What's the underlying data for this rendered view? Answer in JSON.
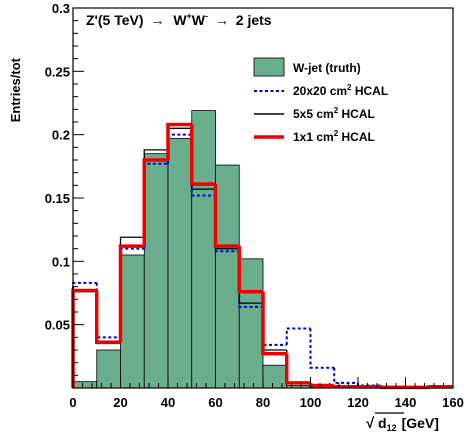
{
  "chart_data": {
    "type": "histogram",
    "title_parts": {
      "a": "Z'(5 TeV)",
      "arrow1": "→",
      "b": "W",
      "b_sup1": "+",
      "c": "W",
      "c_sup": "-",
      "arrow2": "→",
      "d": "2 jets"
    },
    "xlabel": {
      "sqrt": "√",
      "base": "d",
      "sub": "12",
      "unit": "[GeV]"
    },
    "ylabel": "Entries/tot",
    "xlim": [
      0,
      160
    ],
    "ylim": [
      0,
      0.3
    ],
    "x_ticks": [
      0,
      20,
      40,
      60,
      80,
      100,
      120,
      140,
      160
    ],
    "x_tick_labels": [
      "0",
      "20",
      "40",
      "60",
      "80",
      "100",
      "120",
      "140",
      "160"
    ],
    "y_ticks": [
      0,
      0.05,
      0.1,
      0.15,
      0.2,
      0.25,
      0.3
    ],
    "y_tick_labels": [
      "",
      "0.05",
      "0.1",
      "0.15",
      "0.2",
      "0.25",
      "0.3"
    ],
    "bin_edges": [
      0,
      10,
      20,
      30,
      40,
      50,
      60,
      70,
      80,
      90,
      100,
      110,
      120,
      130,
      140,
      150,
      160
    ],
    "legend": {
      "position": "top-right",
      "entries": [
        {
          "key": "wjet",
          "label": "W-jet (truth)",
          "sup": "",
          "tail": ""
        },
        {
          "key": "hcal20",
          "label": "20x20 cm",
          "sup": "2",
          "tail": " HCAL"
        },
        {
          "key": "hcal5",
          "label": "5x5 cm",
          "sup": "2",
          "tail": " HCAL"
        },
        {
          "key": "hcal1",
          "label": "1x1 cm",
          "sup": "2",
          "tail": " HCAL"
        }
      ]
    },
    "series": [
      {
        "key": "wjet",
        "name": "W-jet (truth)",
        "style": "filled",
        "fill": "#6aae8e",
        "stroke": "#000000",
        "values": [
          0.005,
          0.03,
          0.105,
          0.185,
          0.197,
          0.219,
          0.176,
          0.102,
          0.018,
          0.002,
          0.001,
          0,
          0,
          0,
          0,
          0
        ]
      },
      {
        "key": "hcal20",
        "name": "20x20 cm2 HCAL",
        "style": "dashed",
        "stroke": "#0000cc",
        "values": [
          0.083,
          0.04,
          0.11,
          0.177,
          0.2,
          0.152,
          0.108,
          0.064,
          0.034,
          0.047,
          0.016,
          0.004,
          0.002,
          0.001,
          0.0005,
          0.0005
        ]
      },
      {
        "key": "hcal5",
        "name": "5x5 cm2 HCAL",
        "style": "solid-thin",
        "stroke": "#000000",
        "values": [
          0.076,
          0.037,
          0.119,
          0.188,
          0.205,
          0.157,
          0.11,
          0.067,
          0.03,
          0.004,
          0.001,
          0.0005,
          0,
          0,
          0,
          0
        ]
      },
      {
        "key": "hcal1",
        "name": "1x1 cm2 HCAL",
        "style": "solid-thick",
        "stroke": "#ee0000",
        "values": [
          0.077,
          0.036,
          0.112,
          0.18,
          0.208,
          0.161,
          0.112,
          0.076,
          0.027,
          0.004,
          0.002,
          0.001,
          0.001,
          0.0005,
          0.0005,
          0.001
        ]
      }
    ]
  }
}
